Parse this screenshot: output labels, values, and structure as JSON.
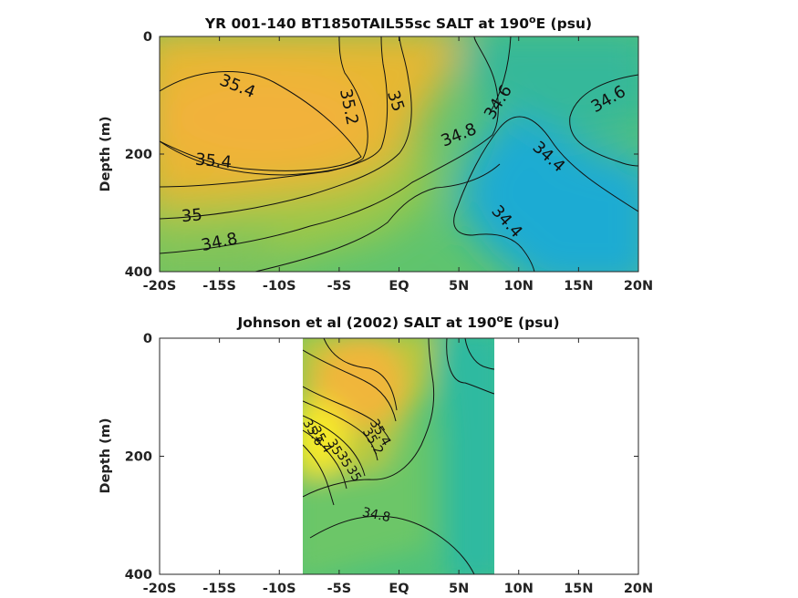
{
  "chart_data": [
    {
      "type": "contour",
      "title_parts": [
        "YR 001-140 BT1850TAIL55sc SALT at 190",
        "o",
        "E (psu)"
      ],
      "ylabel": "Depth (m)",
      "x_ticks": [
        "-20S",
        "-15S",
        "-10S",
        "-5S",
        "EQ",
        "5N",
        "10N",
        "15N",
        "20N"
      ],
      "x_tick_values": [
        -20,
        -15,
        -10,
        -5,
        0,
        5,
        10,
        15,
        20
      ],
      "y_ticks": [
        "0",
        "200",
        "400"
      ],
      "y_tick_values": [
        0,
        200,
        400
      ],
      "xlim": [
        -20,
        20
      ],
      "ylim": [
        400,
        0
      ],
      "contour_labels": [
        {
          "text": "35.4",
          "x": -13.5,
          "y": 85,
          "angle": 22
        },
        {
          "text": "35.4",
          "x": -15.5,
          "y": 212,
          "angle": 5
        },
        {
          "text": "35.2",
          "x": -4.2,
          "y": 120,
          "angle": 78
        },
        {
          "text": "35",
          "x": -0.3,
          "y": 110,
          "angle": 72
        },
        {
          "text": "35",
          "x": -17.3,
          "y": 305,
          "angle": -5
        },
        {
          "text": "34.8",
          "x": -15,
          "y": 350,
          "angle": -12
        },
        {
          "text": "34.8",
          "x": 5,
          "y": 168,
          "angle": -22
        },
        {
          "text": "34.6",
          "x": 8.3,
          "y": 112,
          "angle": -58
        },
        {
          "text": "34.6",
          "x": 17.5,
          "y": 107,
          "angle": -30
        },
        {
          "text": "34.4",
          "x": 12.5,
          "y": 205,
          "angle": 42
        },
        {
          "text": "34.4",
          "x": 9,
          "y": 315,
          "angle": 48
        }
      ]
    },
    {
      "type": "contour",
      "title_parts": [
        "Johnson et al (2002) SALT at 190",
        "o",
        "E (psu)"
      ],
      "ylabel": "Depth (m)",
      "x_ticks": [
        "-20S",
        "-15S",
        "-10S",
        "-5S",
        "EQ",
        "5N",
        "10N",
        "15N",
        "20N"
      ],
      "x_tick_values": [
        -20,
        -15,
        -10,
        -5,
        0,
        5,
        10,
        15,
        20
      ],
      "y_ticks": [
        "0",
        "200",
        "400"
      ],
      "y_tick_values": [
        0,
        200,
        400
      ],
      "xlim": [
        -20,
        20
      ],
      "ylim": [
        400,
        0
      ],
      "data_coverage_x": [
        -8,
        8
      ],
      "contour_labels": [
        {
          "text": "34.8",
          "x": -1.9,
          "y": 300,
          "angle": 12
        },
        {
          "text": "35",
          "x": -3.8,
          "y": 230,
          "angle": 60
        },
        {
          "text": "35",
          "x": -4.6,
          "y": 206,
          "angle": 60
        },
        {
          "text": "35",
          "x": -5.4,
          "y": 185,
          "angle": 60
        },
        {
          "text": "35.4",
          "x": -6.5,
          "y": 172,
          "angle": 60
        },
        {
          "text": "35.6",
          "x": -7.2,
          "y": 160,
          "angle": 60
        },
        {
          "text": "35.2",
          "x": -2.2,
          "y": 175,
          "angle": 60
        },
        {
          "text": "35.4",
          "x": -1.6,
          "y": 160,
          "angle": 60
        }
      ]
    }
  ],
  "colors": {
    "high_salinity": "#f4b62e",
    "peak_salinity": "#f7f520",
    "mid_salinity": "#7cc85a",
    "low_salinity": "#1aa9d6",
    "frame": "#262626"
  }
}
